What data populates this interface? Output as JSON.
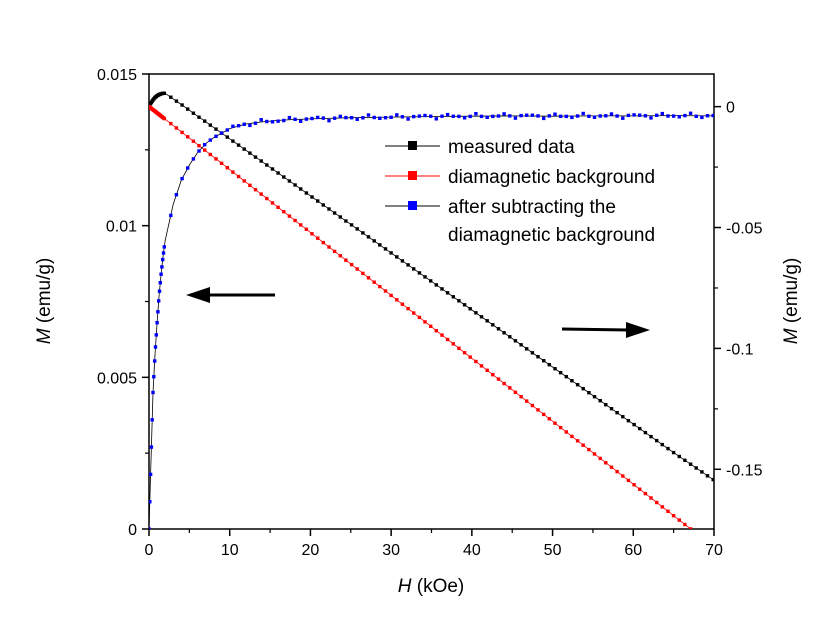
{
  "chart_data": {
    "type": "scatter",
    "title": "",
    "x_axis": {
      "label_italic": "H",
      "label_rest": " (kOe)",
      "range": [
        0,
        70
      ],
      "ticks": [
        0,
        10,
        20,
        30,
        40,
        50,
        60,
        70
      ],
      "tick_labels": [
        "0",
        "10",
        "20",
        "30",
        "40",
        "50",
        "60",
        "70"
      ]
    },
    "y_left": {
      "label_italic": "M",
      "label_rest": " (emu/g)",
      "range": [
        0,
        0.015
      ],
      "ticks": [
        0,
        0.005,
        0.01,
        0.015
      ],
      "tick_labels": [
        "0",
        "0.005",
        "0.01",
        "0.015"
      ]
    },
    "y_right": {
      "label_italic": "M",
      "label_rest": " (emu/g)",
      "range": [
        -0.1747,
        0.0135
      ],
      "ticks": [
        0,
        -0.05,
        -0.1,
        -0.15
      ],
      "tick_labels": [
        "0",
        "-0.05",
        "-0.1",
        "-0.15"
      ]
    },
    "grid": false,
    "legend_position": "top-right",
    "series": [
      {
        "name": "measured data",
        "axis": "right",
        "color": "#000000",
        "x": [
          0,
          0.25,
          0.5,
          0.75,
          1,
          1.25,
          1.5,
          1.75,
          2,
          3,
          4,
          5,
          6,
          7,
          8,
          10,
          15,
          20,
          25,
          30,
          35,
          40,
          45,
          50,
          55,
          60,
          65,
          70
        ],
        "y": [
          0.0,
          0.0015,
          0.0028,
          0.0038,
          0.0045,
          0.005,
          0.0053,
          0.0055,
          0.0055,
          0.0032,
          0.0009,
          -0.0015,
          -0.0039,
          -0.0062,
          -0.0086,
          -0.0133,
          -0.0251,
          -0.0369,
          -0.0487,
          -0.0605,
          -0.0723,
          -0.0841,
          -0.0959,
          -0.1077,
          -0.1195,
          -0.1313,
          -0.1431,
          -0.1545
        ]
      },
      {
        "name": "diamagnetic background",
        "axis": "right",
        "color": "#ff0000",
        "x": [
          0,
          70
        ],
        "y": [
          0.0,
          -0.1822
        ]
      },
      {
        "name": "after subtracting the diamagnetic background",
        "axis": "left",
        "color": "#0000ff",
        "x": [
          0,
          0.1,
          0.2,
          0.3,
          0.5,
          0.75,
          1,
          1.25,
          1.5,
          1.75,
          2,
          3,
          4,
          5,
          6,
          7,
          8,
          9,
          10,
          12,
          14,
          16,
          18,
          20,
          25,
          30,
          35,
          40,
          45,
          50,
          55,
          60,
          65,
          70
        ],
        "y": [
          0,
          0.0009,
          0.0018,
          0.0027,
          0.0045,
          0.0058,
          0.0068,
          0.0077,
          0.0084,
          0.009,
          0.0095,
          0.0107,
          0.0115,
          0.012,
          0.0124,
          0.0127,
          0.0129,
          0.01305,
          0.0132,
          0.01335,
          0.01342,
          0.01347,
          0.0135,
          0.01352,
          0.01356,
          0.01358,
          0.0136,
          0.01361,
          0.01362,
          0.01361,
          0.01362,
          0.01362,
          0.01363,
          0.01362
        ]
      }
    ],
    "legend": [
      "measured data",
      "diamagnetic background",
      "after subtracting the",
      "diamagnetic background"
    ],
    "annotations": [
      {
        "type": "arrow",
        "points_to": "left-axis"
      },
      {
        "type": "arrow",
        "points_to": "right-axis"
      }
    ]
  }
}
